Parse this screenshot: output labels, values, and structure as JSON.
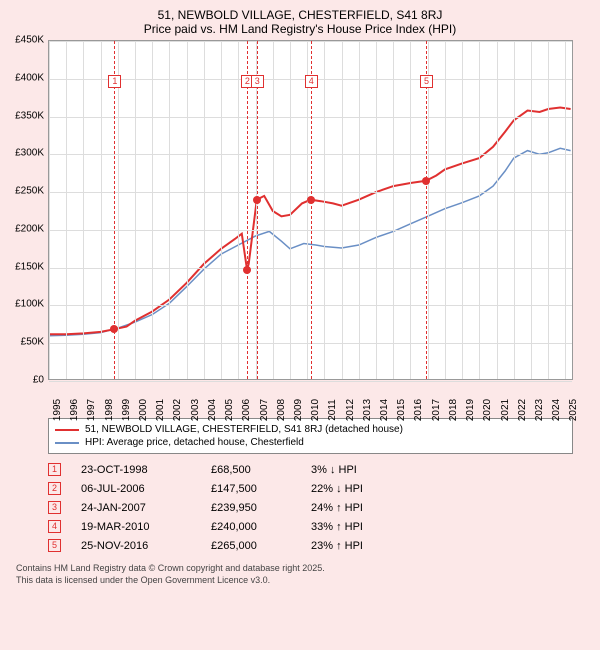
{
  "title": "51, NEWBOLD VILLAGE, CHESTERFIELD, S41 8RJ",
  "subtitle": "Price paid vs. HM Land Registry's House Price Index (HPI)",
  "chart": {
    "type": "line",
    "background_color": "#ffffff",
    "page_background": "#fce8e8",
    "grid_color": "#dddddd",
    "border_color": "#999999",
    "xlim": [
      1995,
      2025.5
    ],
    "ylim": [
      0,
      450000
    ],
    "ytick_step": 50000,
    "y_ticks": [
      {
        "v": 0,
        "label": "£0"
      },
      {
        "v": 50000,
        "label": "£50K"
      },
      {
        "v": 100000,
        "label": "£100K"
      },
      {
        "v": 150000,
        "label": "£150K"
      },
      {
        "v": 200000,
        "label": "£200K"
      },
      {
        "v": 250000,
        "label": "£250K"
      },
      {
        "v": 300000,
        "label": "£300K"
      },
      {
        "v": 350000,
        "label": "£350K"
      },
      {
        "v": 400000,
        "label": "£400K"
      },
      {
        "v": 450000,
        "label": "£450K"
      }
    ],
    "x_ticks": [
      1995,
      1996,
      1997,
      1998,
      1999,
      2000,
      2001,
      2002,
      2003,
      2004,
      2005,
      2006,
      2007,
      2008,
      2009,
      2010,
      2011,
      2012,
      2013,
      2014,
      2015,
      2016,
      2017,
      2018,
      2019,
      2020,
      2021,
      2022,
      2023,
      2024,
      2025
    ],
    "series_red": {
      "color": "#e03030",
      "width": 2,
      "label": "51, NEWBOLD VILLAGE, CHESTERFIELD, S41 8RJ (detached house)",
      "points": [
        [
          1995,
          62000
        ],
        [
          1996,
          62000
        ],
        [
          1997,
          63000
        ],
        [
          1998,
          65000
        ],
        [
          1998.8,
          68500
        ],
        [
          1999.5,
          72000
        ],
        [
          2000,
          80000
        ],
        [
          2001,
          92000
        ],
        [
          2002,
          108000
        ],
        [
          2003,
          130000
        ],
        [
          2004,
          155000
        ],
        [
          2005,
          175000
        ],
        [
          2005.8,
          188000
        ],
        [
          2006.2,
          195000
        ],
        [
          2006.5,
          147500
        ],
        [
          2006.6,
          155000
        ],
        [
          2007.07,
          239950
        ],
        [
          2007.5,
          245000
        ],
        [
          2008,
          225000
        ],
        [
          2008.5,
          218000
        ],
        [
          2009,
          220000
        ],
        [
          2009.7,
          235000
        ],
        [
          2010.2,
          240000
        ],
        [
          2010.8,
          238000
        ],
        [
          2011.5,
          235000
        ],
        [
          2012,
          232000
        ],
        [
          2013,
          240000
        ],
        [
          2014,
          250000
        ],
        [
          2015,
          258000
        ],
        [
          2016,
          262000
        ],
        [
          2016.9,
          265000
        ],
        [
          2017.5,
          272000
        ],
        [
          2018,
          280000
        ],
        [
          2019,
          288000
        ],
        [
          2020,
          295000
        ],
        [
          2020.8,
          310000
        ],
        [
          2021.5,
          330000
        ],
        [
          2022,
          345000
        ],
        [
          2022.8,
          358000
        ],
        [
          2023.5,
          356000
        ],
        [
          2024,
          360000
        ],
        [
          2024.7,
          362000
        ],
        [
          2025.3,
          360000
        ]
      ]
    },
    "series_blue": {
      "color": "#6a8fc5",
      "width": 1.5,
      "label": "HPI: Average price, detached house, Chesterfield",
      "points": [
        [
          1995,
          60000
        ],
        [
          1996,
          60500
        ],
        [
          1997,
          62000
        ],
        [
          1998,
          64000
        ],
        [
          1999,
          70000
        ],
        [
          2000,
          78000
        ],
        [
          2001,
          88000
        ],
        [
          2002,
          103000
        ],
        [
          2003,
          125000
        ],
        [
          2004,
          148000
        ],
        [
          2005,
          168000
        ],
        [
          2006,
          180000
        ],
        [
          2007,
          192000
        ],
        [
          2007.8,
          198000
        ],
        [
          2008.5,
          185000
        ],
        [
          2009,
          175000
        ],
        [
          2009.8,
          182000
        ],
        [
          2010.5,
          180000
        ],
        [
          2011,
          178000
        ],
        [
          2012,
          176000
        ],
        [
          2013,
          180000
        ],
        [
          2014,
          190000
        ],
        [
          2015,
          198000
        ],
        [
          2016,
          208000
        ],
        [
          2017,
          218000
        ],
        [
          2018,
          228000
        ],
        [
          2019,
          236000
        ],
        [
          2020,
          245000
        ],
        [
          2020.8,
          258000
        ],
        [
          2021.5,
          278000
        ],
        [
          2022,
          295000
        ],
        [
          2022.8,
          305000
        ],
        [
          2023.5,
          300000
        ],
        [
          2024,
          302000
        ],
        [
          2024.7,
          308000
        ],
        [
          2025.3,
          305000
        ]
      ]
    },
    "event_lines": [
      {
        "n": "1",
        "x": 1998.8,
        "y_marker": 405000,
        "dot_y": 68500
      },
      {
        "n": "2",
        "x": 2006.5,
        "y_marker": 405000,
        "dot_y": 147500
      },
      {
        "n": "3",
        "x": 2007.07,
        "y_marker": 405000,
        "dot_y": 239950
      },
      {
        "n": "4",
        "x": 2010.21,
        "y_marker": 405000,
        "dot_y": 240000
      },
      {
        "n": "5",
        "x": 2016.9,
        "y_marker": 405000,
        "dot_y": 265000
      }
    ],
    "event_marker_border": "#e03030",
    "event_marker_text": "#e03030",
    "label_fontsize": 10
  },
  "legend": {
    "red_label": "51, NEWBOLD VILLAGE, CHESTERFIELD, S41 8RJ (detached house)",
    "blue_label": "HPI: Average price, detached house, Chesterfield",
    "red_color": "#e03030",
    "blue_color": "#6a8fc5"
  },
  "events": [
    {
      "n": "1",
      "date": "23-OCT-1998",
      "price": "£68,500",
      "pct": "3% ↓ HPI"
    },
    {
      "n": "2",
      "date": "06-JUL-2006",
      "price": "£147,500",
      "pct": "22% ↓ HPI"
    },
    {
      "n": "3",
      "date": "24-JAN-2007",
      "price": "£239,950",
      "pct": "24% ↑ HPI"
    },
    {
      "n": "4",
      "date": "19-MAR-2010",
      "price": "£240,000",
      "pct": "33% ↑ HPI"
    },
    {
      "n": "5",
      "date": "25-NOV-2016",
      "price": "£265,000",
      "pct": "23% ↑ HPI"
    }
  ],
  "footnote_l1": "Contains HM Land Registry data © Crown copyright and database right 2025.",
  "footnote_l2": "This data is licensed under the Open Government Licence v3.0."
}
